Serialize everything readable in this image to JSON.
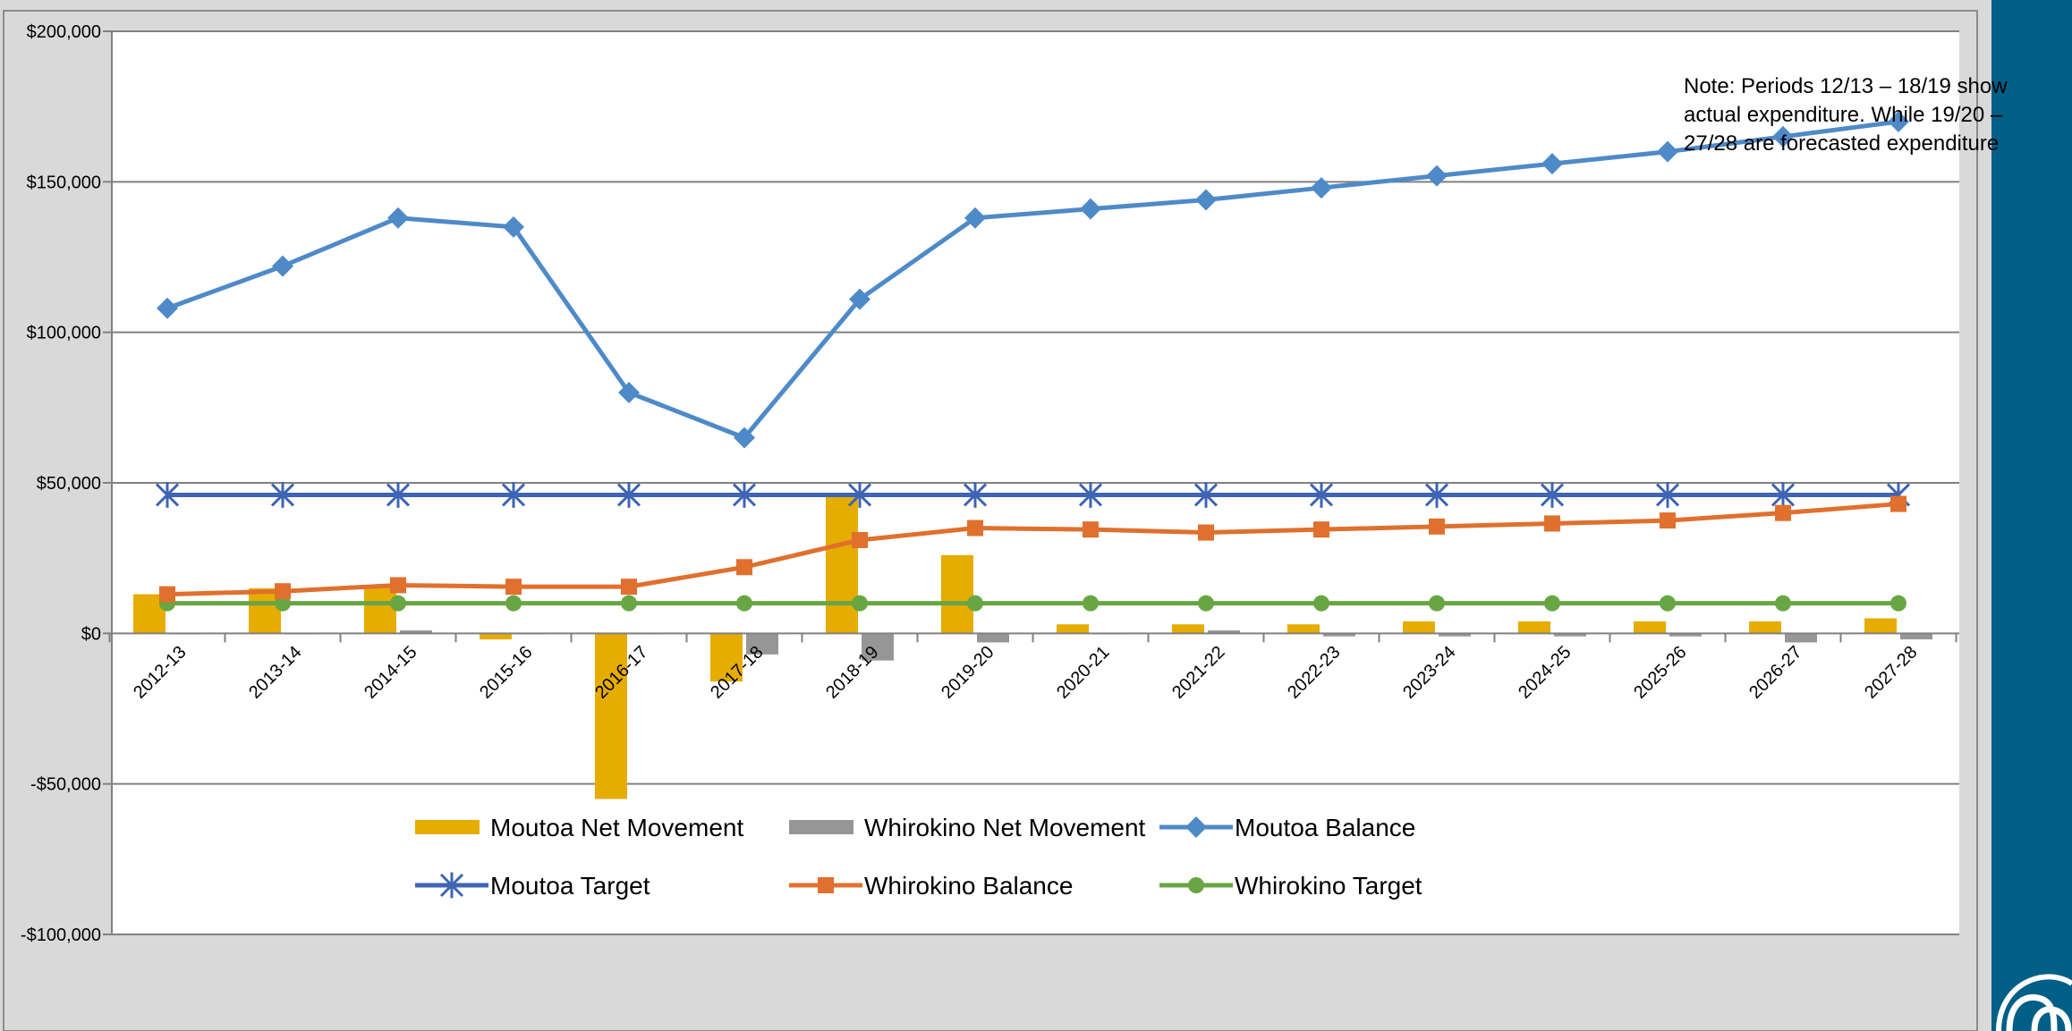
{
  "chart_data": {
    "type": "bar+line",
    "title": "",
    "xlabel": "",
    "ylabel": "",
    "ylim": [
      -100000,
      200000
    ],
    "y_ticks": [
      {
        "value": 200000,
        "label": "$200,000"
      },
      {
        "value": 150000,
        "label": "$150,000"
      },
      {
        "value": 100000,
        "label": "$100,000"
      },
      {
        "value": 50000,
        "label": "$50,000"
      },
      {
        "value": 0,
        "label": "$0"
      },
      {
        "value": -50000,
        "label": "-$50,000"
      },
      {
        "value": -100000,
        "label": "-$100,000"
      }
    ],
    "grid": true,
    "legend_position": "bottom",
    "categories": [
      "2012-13",
      "2013-14",
      "2014-15",
      "2015-16",
      "2016-17",
      "2017-18",
      "2018-19",
      "2019-20",
      "2020-21",
      "2021-22",
      "2022-23",
      "2023-24",
      "2024-25",
      "2025-26",
      "2026-27",
      "2027-28"
    ],
    "bar_series": [
      {
        "name": "Moutoa Net Movement",
        "color": "#e6ac00",
        "values": [
          13000,
          15000,
          16000,
          -2000,
          -55000,
          -16000,
          46000,
          26000,
          3000,
          3000,
          3000,
          4000,
          4000,
          4000,
          4000,
          5000
        ]
      },
      {
        "name": "Whirokino Net Movement",
        "color": "#969696",
        "values": [
          0,
          0,
          1000,
          0,
          0,
          -7000,
          -9000,
          -3000,
          0,
          1000,
          -1000,
          -1000,
          -1000,
          -1000,
          -3000,
          -2000
        ]
      }
    ],
    "line_series": [
      {
        "name": "Moutoa Balance",
        "color": "#4f8ac8",
        "marker": "diamond",
        "values": [
          108000,
          122000,
          138000,
          135000,
          80000,
          65000,
          111000,
          138000,
          141000,
          144000,
          148000,
          152000,
          156000,
          160000,
          165000,
          170000
        ]
      },
      {
        "name": "Moutoa Target",
        "color": "#3e64b3",
        "marker": "asterisk",
        "values": [
          46000,
          46000,
          46000,
          46000,
          46000,
          46000,
          46000,
          46000,
          46000,
          46000,
          46000,
          46000,
          46000,
          46000,
          46000,
          46000
        ]
      },
      {
        "name": "Whirokino Balance",
        "color": "#e0702e",
        "marker": "square",
        "values": [
          13000,
          14000,
          16000,
          15500,
          15500,
          22000,
          31000,
          35000,
          34500,
          33500,
          34500,
          35500,
          36500,
          37500,
          40000,
          43000
        ]
      },
      {
        "name": "Whirokino Target",
        "color": "#68a643",
        "marker": "circle",
        "values": [
          10000,
          10000,
          10000,
          10000,
          10000,
          10000,
          10000,
          10000,
          10000,
          10000,
          10000,
          10000,
          10000,
          10000,
          10000,
          10000
        ]
      }
    ],
    "annotation": {
      "lines": [
        "Note: Periods 12/13 – 18/19 show",
        "actual expenditure. While 19/20 –",
        "27/28 are forecasted  expenditure"
      ]
    },
    "side_bar_color": "#005f86"
  }
}
